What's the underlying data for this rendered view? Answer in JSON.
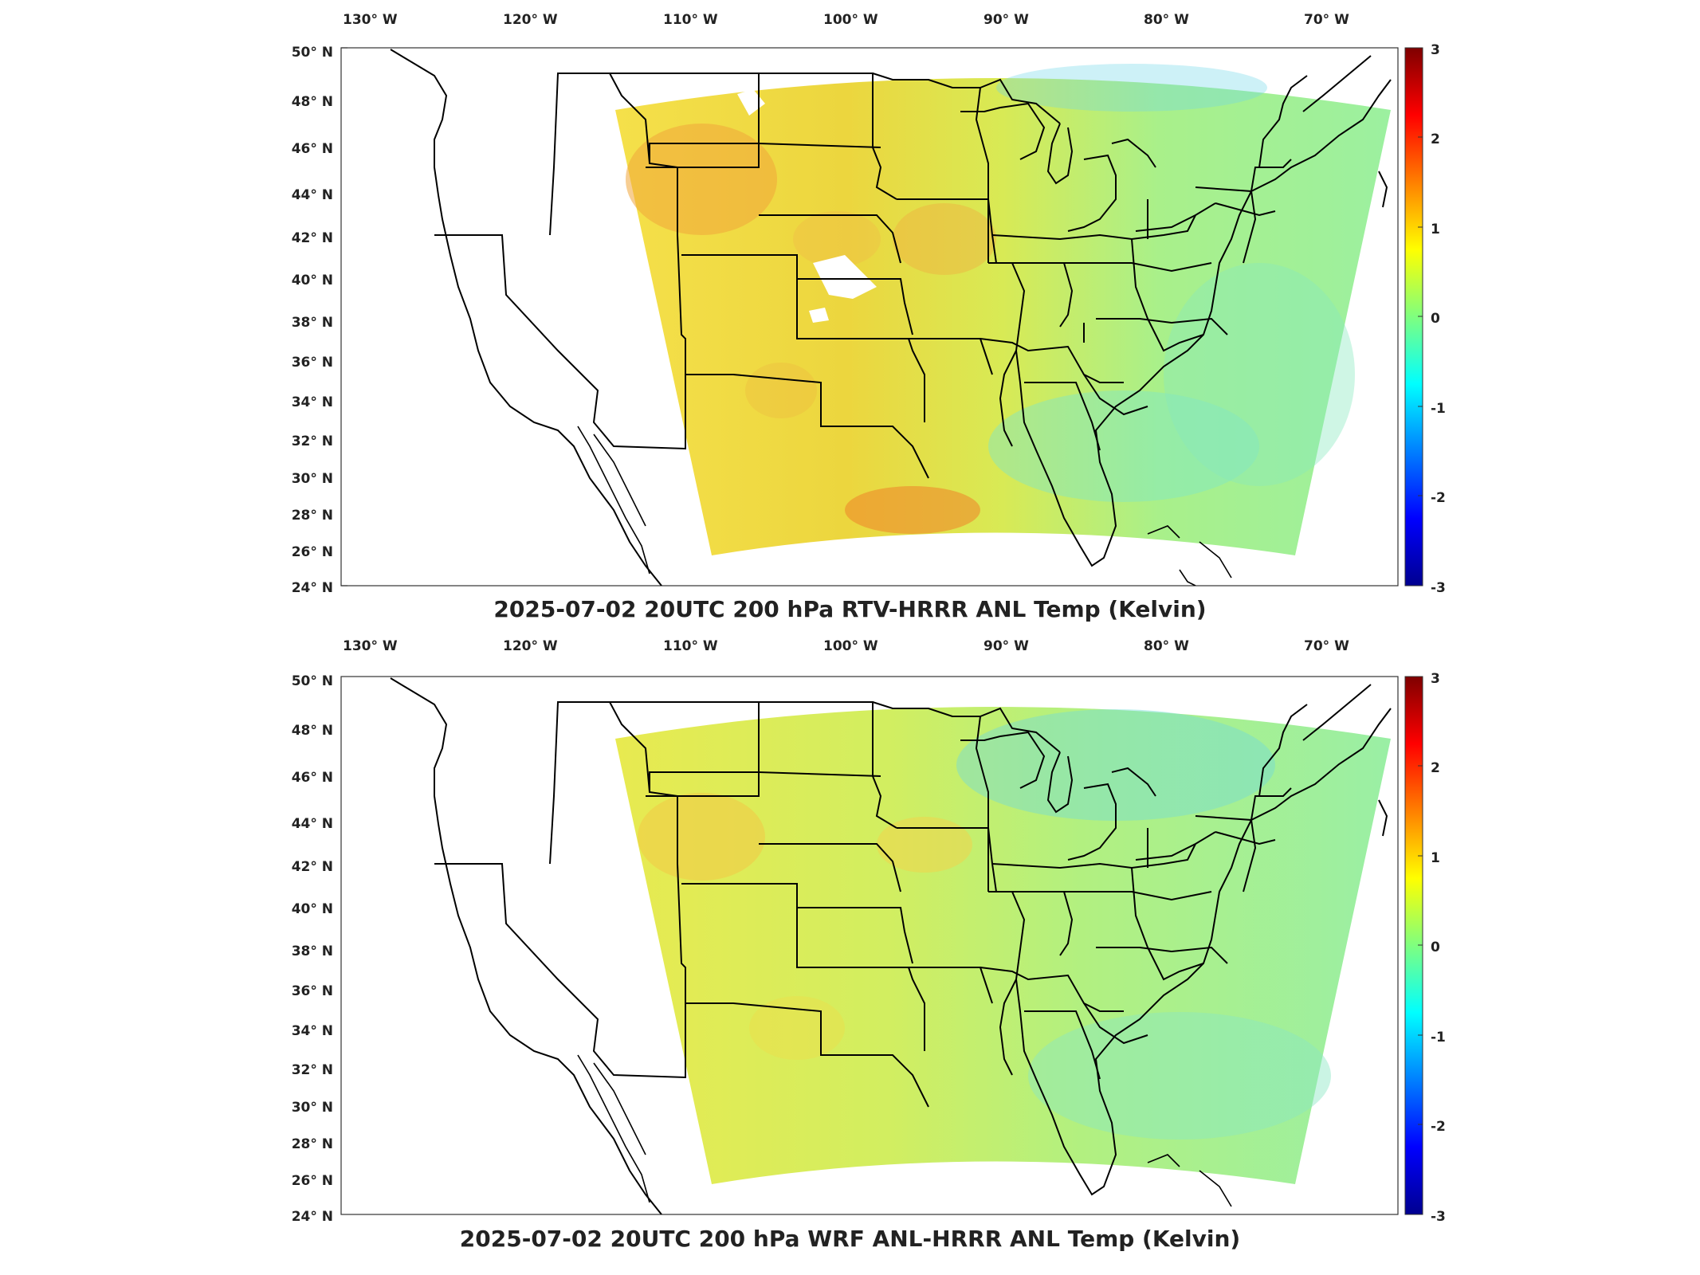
{
  "panels": [
    {
      "title": "2025-07-02 20UTC 200 hPa RTV-HRRR ANL Temp (Kelvin)",
      "lon_labels": [
        "130° W",
        "120° W",
        "110° W",
        "100° W",
        "90° W",
        "80° W",
        "70° W"
      ],
      "lat_labels": [
        "50° N",
        "48° N",
        "46° N",
        "44° N",
        "42° N",
        "40° N",
        "38° N",
        "36° N",
        "34° N",
        "32° N",
        "30° N",
        "28° N",
        "26° N",
        "24° N"
      ],
      "colorbar_ticks": [
        "3",
        "2",
        "1",
        "0",
        "-1",
        "-2",
        "-3"
      ]
    },
    {
      "title": "2025-07-02 20UTC 200 hPa WRF ANL-HRRR ANL Temp (Kelvin)",
      "lon_labels": [
        "130° W",
        "120° W",
        "110° W",
        "100° W",
        "90° W",
        "80° W",
        "70° W"
      ],
      "lat_labels": [
        "50° N",
        "48° N",
        "46° N",
        "44° N",
        "42° N",
        "40° N",
        "38° N",
        "36° N",
        "34° N",
        "32° N",
        "30° N",
        "28° N",
        "26° N",
        "24° N"
      ],
      "colorbar_ticks": [
        "3",
        "2",
        "1",
        "0",
        "-1",
        "-2",
        "-3"
      ]
    }
  ],
  "colormap": [
    "#00008f",
    "#0000ff",
    "#00ffff",
    "#7fff7f",
    "#ffff00",
    "#ff7f00",
    "#ff0000",
    "#7f0000"
  ],
  "colorbar_range": [
    -3,
    3
  ]
}
